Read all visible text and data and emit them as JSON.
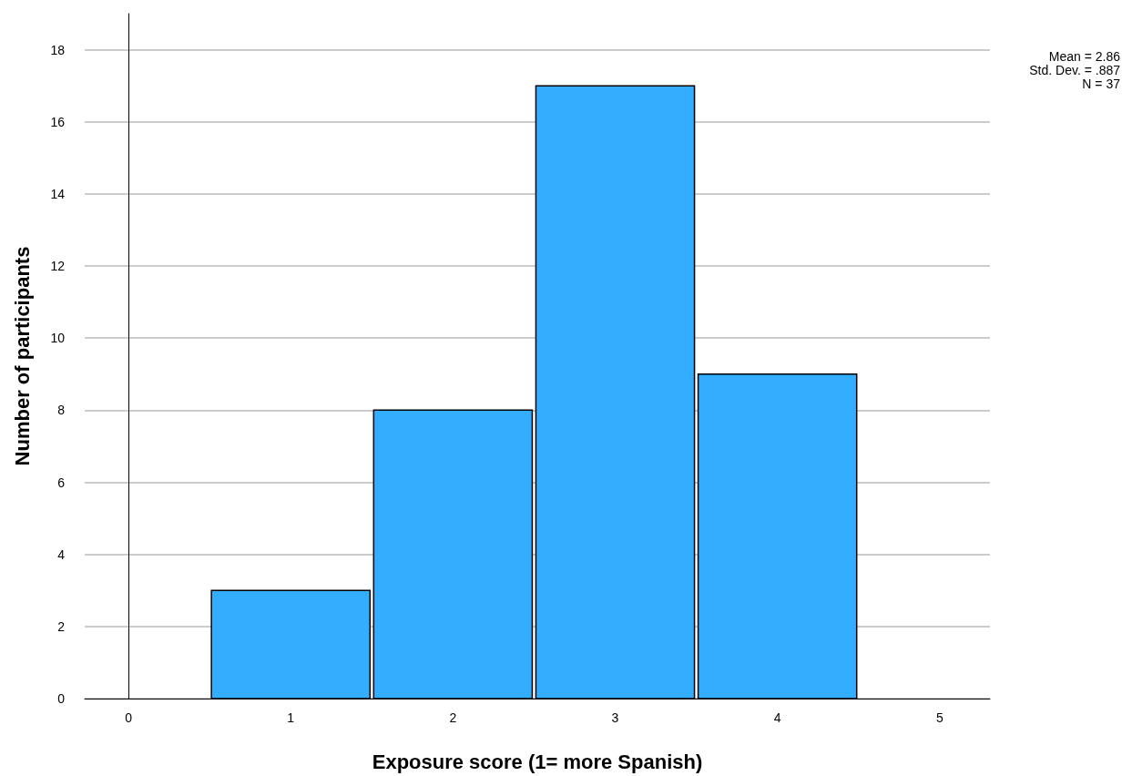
{
  "chart_data": {
    "type": "histogram",
    "xlabel": "Exposure score (1= more Spanish)",
    "ylabel": "Number of participants",
    "bins": [
      0.5,
      1.5,
      2.5,
      3.5,
      4.5
    ],
    "values": [
      3,
      8,
      17,
      9
    ],
    "color": "#33adff",
    "xlim": [
      -0.27,
      5.31
    ],
    "xticks": [
      0,
      1,
      2,
      3,
      4,
      5
    ],
    "ylim": [
      0,
      19
    ],
    "yticks": [
      0,
      2,
      4,
      6,
      8,
      10,
      12,
      14,
      16,
      18
    ],
    "grid": "y",
    "annotations": [
      "Mean = 2.86",
      "Std. Dev. = .887",
      "N = 37"
    ]
  }
}
